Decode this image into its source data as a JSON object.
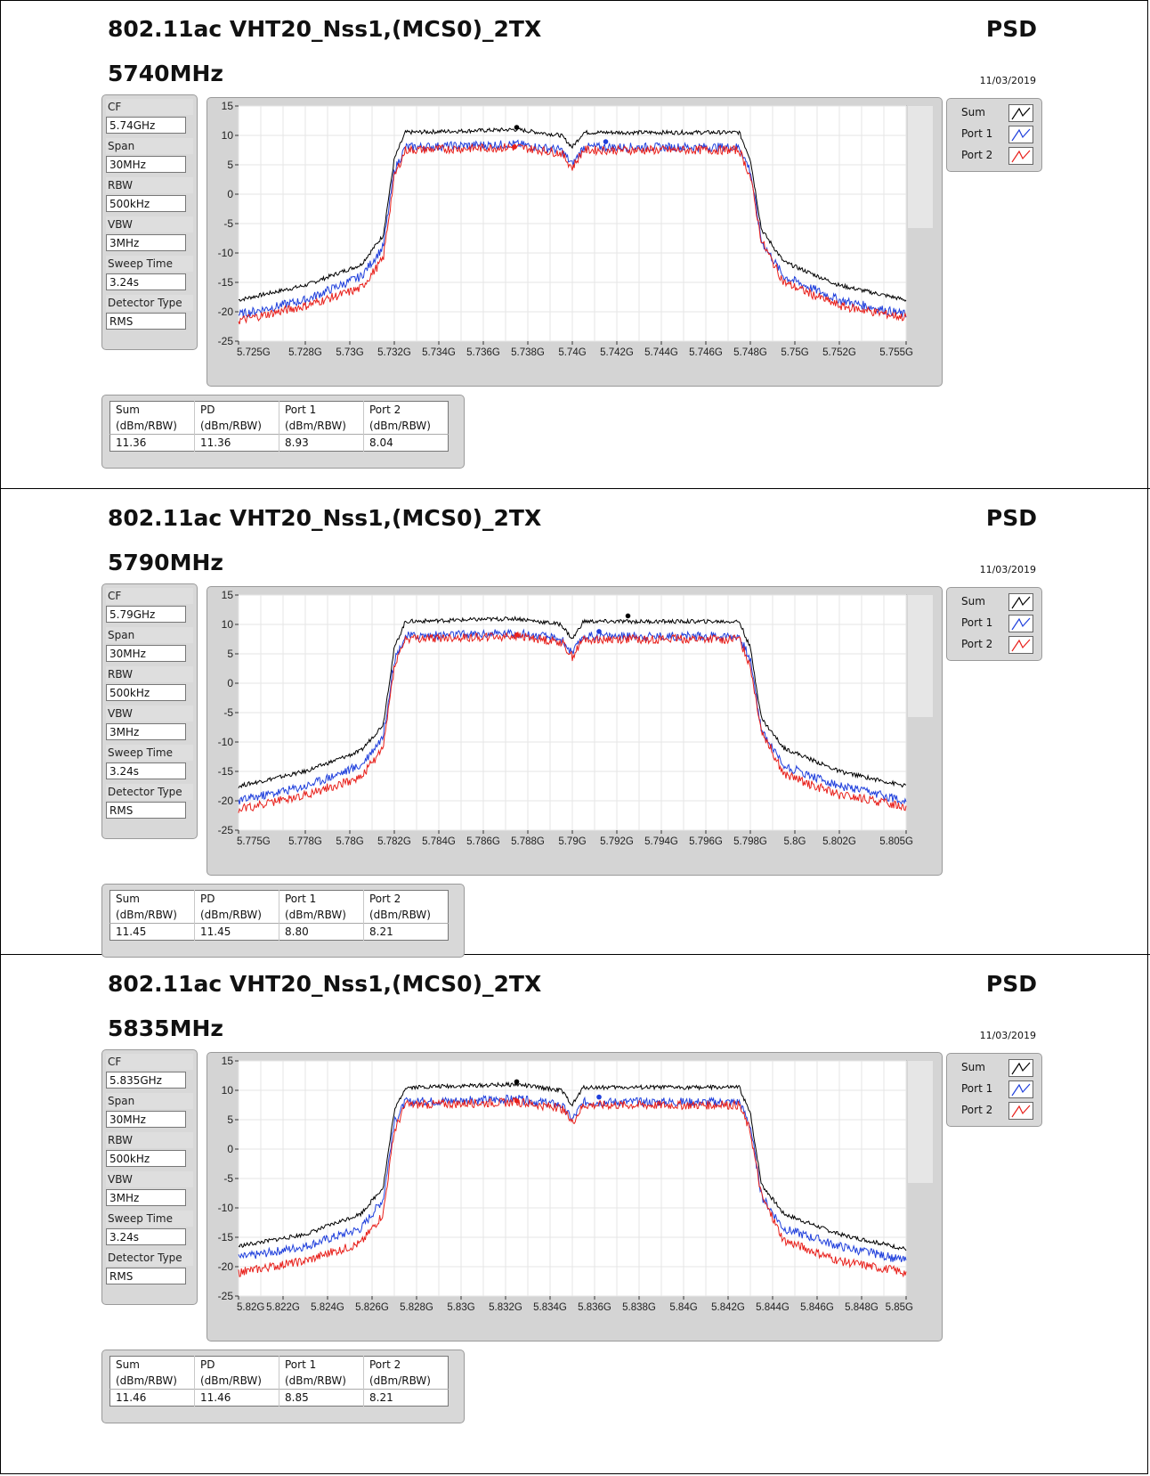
{
  "panels": [
    {
      "title": "802.11ac VHT20_Nss1,(MCS0)_2TX",
      "right_label": "PSD",
      "frequency": "5740MHz",
      "date": "11/03/2019",
      "settings": [
        {
          "label": "CF",
          "value": "5.74GHz"
        },
        {
          "label": "Span",
          "value": "30MHz"
        },
        {
          "label": "RBW",
          "value": "500kHz"
        },
        {
          "label": "VBW",
          "value": "3MHz"
        },
        {
          "label": "Sweep Time",
          "value": "3.24s"
        },
        {
          "label": "Detector Type",
          "value": "RMS"
        }
      ],
      "legend": [
        {
          "name": "Sum",
          "color": "#000000"
        },
        {
          "name": "Port 1",
          "color": "#1f3fdc"
        },
        {
          "name": "Port 2",
          "color": "#e8201b"
        }
      ],
      "results": {
        "headers": [
          "Sum",
          "PD",
          "Port 1",
          "Port 2"
        ],
        "units": [
          "(dBm/RBW)",
          "(dBm/RBW)",
          "(dBm/RBW)",
          "(dBm/RBW)"
        ],
        "values": [
          "11.36",
          "11.36",
          "8.93",
          "8.04"
        ]
      }
    },
    {
      "title": "802.11ac VHT20_Nss1,(MCS0)_2TX",
      "right_label": "PSD",
      "frequency": "5790MHz",
      "date": "11/03/2019",
      "settings": [
        {
          "label": "CF",
          "value": "5.79GHz"
        },
        {
          "label": "Span",
          "value": "30MHz"
        },
        {
          "label": "RBW",
          "value": "500kHz"
        },
        {
          "label": "VBW",
          "value": "3MHz"
        },
        {
          "label": "Sweep Time",
          "value": "3.24s"
        },
        {
          "label": "Detector Type",
          "value": "RMS"
        }
      ],
      "legend": [
        {
          "name": "Sum",
          "color": "#000000"
        },
        {
          "name": "Port 1",
          "color": "#1f3fdc"
        },
        {
          "name": "Port 2",
          "color": "#e8201b"
        }
      ],
      "results": {
        "headers": [
          "Sum",
          "PD",
          "Port 1",
          "Port 2"
        ],
        "units": [
          "(dBm/RBW)",
          "(dBm/RBW)",
          "(dBm/RBW)",
          "(dBm/RBW)"
        ],
        "values": [
          "11.45",
          "11.45",
          "8.80",
          "8.21"
        ]
      }
    },
    {
      "title": "802.11ac VHT20_Nss1,(MCS0)_2TX",
      "right_label": "PSD",
      "frequency": "5835MHz",
      "date": "11/03/2019",
      "settings": [
        {
          "label": "CF",
          "value": "5.835GHz"
        },
        {
          "label": "Span",
          "value": "30MHz"
        },
        {
          "label": "RBW",
          "value": "500kHz"
        },
        {
          "label": "VBW",
          "value": "3MHz"
        },
        {
          "label": "Sweep Time",
          "value": "3.24s"
        },
        {
          "label": "Detector Type",
          "value": "RMS"
        }
      ],
      "legend": [
        {
          "name": "Sum",
          "color": "#000000"
        },
        {
          "name": "Port 1",
          "color": "#1f3fdc"
        },
        {
          "name": "Port 2",
          "color": "#e8201b"
        }
      ],
      "results": {
        "headers": [
          "Sum",
          "PD",
          "Port 1",
          "Port 2"
        ],
        "units": [
          "(dBm/RBW)",
          "(dBm/RBW)",
          "(dBm/RBW)",
          "(dBm/RBW)"
        ],
        "values": [
          "11.46",
          "11.46",
          "8.85",
          "8.21"
        ]
      }
    }
  ],
  "chart_data": [
    {
      "type": "line",
      "xlim": [
        5.725,
        5.755
      ],
      "ylim": [
        -25,
        15
      ],
      "grid": true,
      "legend_position": "right",
      "x_ticks": [
        "5.725G",
        "5.728G",
        "5.73G",
        "5.732G",
        "5.734G",
        "5.736G",
        "5.738G",
        "5.74G",
        "5.742G",
        "5.744G",
        "5.746G",
        "5.748G",
        "5.75G",
        "5.752G",
        "5.755G"
      ],
      "y_ticks": [
        "15",
        "10",
        "5",
        "0",
        "-5",
        "-10",
        "-15",
        "-20",
        "-25"
      ],
      "series": [
        {
          "name": "Sum",
          "color": "#000000",
          "x": [
            5.725,
            5.728,
            5.7305,
            5.7315,
            5.732,
            5.7325,
            5.7375,
            5.7395,
            5.74,
            5.7405,
            5.7475,
            5.748,
            5.7485,
            5.7495,
            5.752,
            5.755
          ],
          "y": [
            -18,
            -15.5,
            -12,
            -7,
            6,
            10.5,
            11,
            10,
            8,
            10.5,
            10.5,
            6,
            -6,
            -11.5,
            -15.5,
            -18
          ]
        },
        {
          "name": "Port 1",
          "color": "#1f3fdc",
          "x": [
            5.725,
            5.728,
            5.7305,
            5.7315,
            5.732,
            5.7325,
            5.7375,
            5.7395,
            5.74,
            5.7405,
            5.7475,
            5.748,
            5.7485,
            5.7495,
            5.752,
            5.755
          ],
          "y": [
            -20.5,
            -18,
            -14,
            -9,
            4,
            8,
            8.5,
            7.5,
            5,
            8,
            8,
            4,
            -8,
            -14,
            -18,
            -20.5
          ]
        },
        {
          "name": "Port 2",
          "color": "#e8201b",
          "x": [
            5.725,
            5.728,
            5.7305,
            5.7315,
            5.732,
            5.7325,
            5.7375,
            5.7395,
            5.74,
            5.7405,
            5.7475,
            5.748,
            5.7485,
            5.7495,
            5.752,
            5.755
          ],
          "y": [
            -21.5,
            -19,
            -16,
            -11,
            3,
            7.5,
            8,
            7,
            4.5,
            7.5,
            7.5,
            3,
            -8,
            -15,
            -19,
            -21
          ]
        }
      ],
      "markers": [
        {
          "series": "Sum",
          "x": 5.7375,
          "y": 11.36
        },
        {
          "series": "Port 1",
          "x": 5.7415,
          "y": 8.93
        },
        {
          "series": "Port 2",
          "x": 5.7374,
          "y": 8.04
        }
      ]
    },
    {
      "type": "line",
      "xlim": [
        5.775,
        5.805
      ],
      "ylim": [
        -25,
        15
      ],
      "grid": true,
      "legend_position": "right",
      "x_ticks": [
        "5.775G",
        "5.778G",
        "5.78G",
        "5.782G",
        "5.784G",
        "5.786G",
        "5.788G",
        "5.79G",
        "5.792G",
        "5.794G",
        "5.796G",
        "5.798G",
        "5.8G",
        "5.802G",
        "5.805G"
      ],
      "y_ticks": [
        "15",
        "10",
        "5",
        "0",
        "-5",
        "-10",
        "-15",
        "-20",
        "-25"
      ],
      "series": [
        {
          "name": "Sum",
          "color": "#000000",
          "x": [
            5.775,
            5.778,
            5.7805,
            5.7815,
            5.782,
            5.7825,
            5.7875,
            5.7895,
            5.79,
            5.7905,
            5.7975,
            5.798,
            5.7985,
            5.7995,
            5.802,
            5.805
          ],
          "y": [
            -17.5,
            -15,
            -11.5,
            -7,
            6,
            10.5,
            11,
            10,
            7.5,
            10.5,
            10.5,
            6,
            -6,
            -11,
            -15,
            -17.5
          ]
        },
        {
          "name": "Port 1",
          "color": "#1f3fdc",
          "x": [
            5.775,
            5.778,
            5.7805,
            5.7815,
            5.782,
            5.7825,
            5.7875,
            5.7895,
            5.79,
            5.7905,
            5.7975,
            5.798,
            5.7985,
            5.7995,
            5.802,
            5.805
          ],
          "y": [
            -20,
            -17.5,
            -14,
            -9,
            4,
            8,
            8.5,
            7.5,
            5,
            8,
            8,
            4,
            -8,
            -14,
            -17.5,
            -20
          ]
        },
        {
          "name": "Port 2",
          "color": "#e8201b",
          "x": [
            5.775,
            5.778,
            5.7805,
            5.7815,
            5.782,
            5.7825,
            5.7875,
            5.7895,
            5.79,
            5.7905,
            5.7975,
            5.798,
            5.7985,
            5.7995,
            5.802,
            5.805
          ],
          "y": [
            -21.5,
            -19,
            -16,
            -11,
            3,
            7.5,
            8,
            7,
            4.5,
            7.5,
            7.5,
            3,
            -8,
            -15.5,
            -19,
            -21
          ]
        }
      ],
      "markers": [
        {
          "series": "Sum",
          "x": 5.7925,
          "y": 11.45
        },
        {
          "series": "Port 1",
          "x": 5.7912,
          "y": 8.8
        },
        {
          "series": "Port 2",
          "x": 5.7875,
          "y": 8.21
        }
      ]
    },
    {
      "type": "line",
      "xlim": [
        5.82,
        5.85
      ],
      "ylim": [
        -25,
        15
      ],
      "grid": true,
      "legend_position": "right",
      "x_ticks": [
        "5.82G",
        "5.822G",
        "5.824G",
        "5.826G",
        "5.828G",
        "5.83G",
        "5.832G",
        "5.834G",
        "5.836G",
        "5.838G",
        "5.84G",
        "5.842G",
        "5.844G",
        "5.846G",
        "5.848G",
        "5.85G"
      ],
      "y_ticks": [
        "15",
        "10",
        "5",
        "0",
        "-5",
        "-10",
        "-15",
        "-20",
        "-25"
      ],
      "series": [
        {
          "name": "Sum",
          "color": "#000000",
          "x": [
            5.82,
            5.823,
            5.8255,
            5.8265,
            5.827,
            5.8275,
            5.8325,
            5.8345,
            5.835,
            5.8355,
            5.8425,
            5.843,
            5.8435,
            5.8445,
            5.847,
            5.85
          ],
          "y": [
            -16.5,
            -14.5,
            -11,
            -6.5,
            6.5,
            10.5,
            11,
            10,
            7.5,
            10.5,
            10.5,
            6,
            -6,
            -11,
            -14.5,
            -17
          ]
        },
        {
          "name": "Port 1",
          "color": "#1f3fdc",
          "x": [
            5.82,
            5.823,
            5.8255,
            5.8265,
            5.827,
            5.8275,
            5.8325,
            5.8345,
            5.835,
            5.8355,
            5.8425,
            5.843,
            5.8435,
            5.8445,
            5.847,
            5.85
          ],
          "y": [
            -18.5,
            -16.5,
            -13.5,
            -8.5,
            4.5,
            8,
            8.5,
            7.5,
            5,
            8,
            8,
            4,
            -8,
            -13.5,
            -16.5,
            -19
          ]
        },
        {
          "name": "Port 2",
          "color": "#e8201b",
          "x": [
            5.82,
            5.823,
            5.8255,
            5.8265,
            5.827,
            5.8275,
            5.8325,
            5.8345,
            5.835,
            5.8355,
            5.8425,
            5.843,
            5.8435,
            5.8445,
            5.847,
            5.85
          ],
          "y": [
            -21,
            -19,
            -16,
            -11,
            3,
            7.5,
            8,
            7,
            4.5,
            7.5,
            7.5,
            3,
            -8,
            -15.5,
            -19,
            -21
          ]
        }
      ],
      "markers": [
        {
          "series": "Sum",
          "x": 5.8325,
          "y": 11.46
        },
        {
          "series": "Port 1",
          "x": 5.8362,
          "y": 8.85
        },
        {
          "series": "Port 2",
          "x": 5.8325,
          "y": 8.21
        }
      ]
    }
  ]
}
